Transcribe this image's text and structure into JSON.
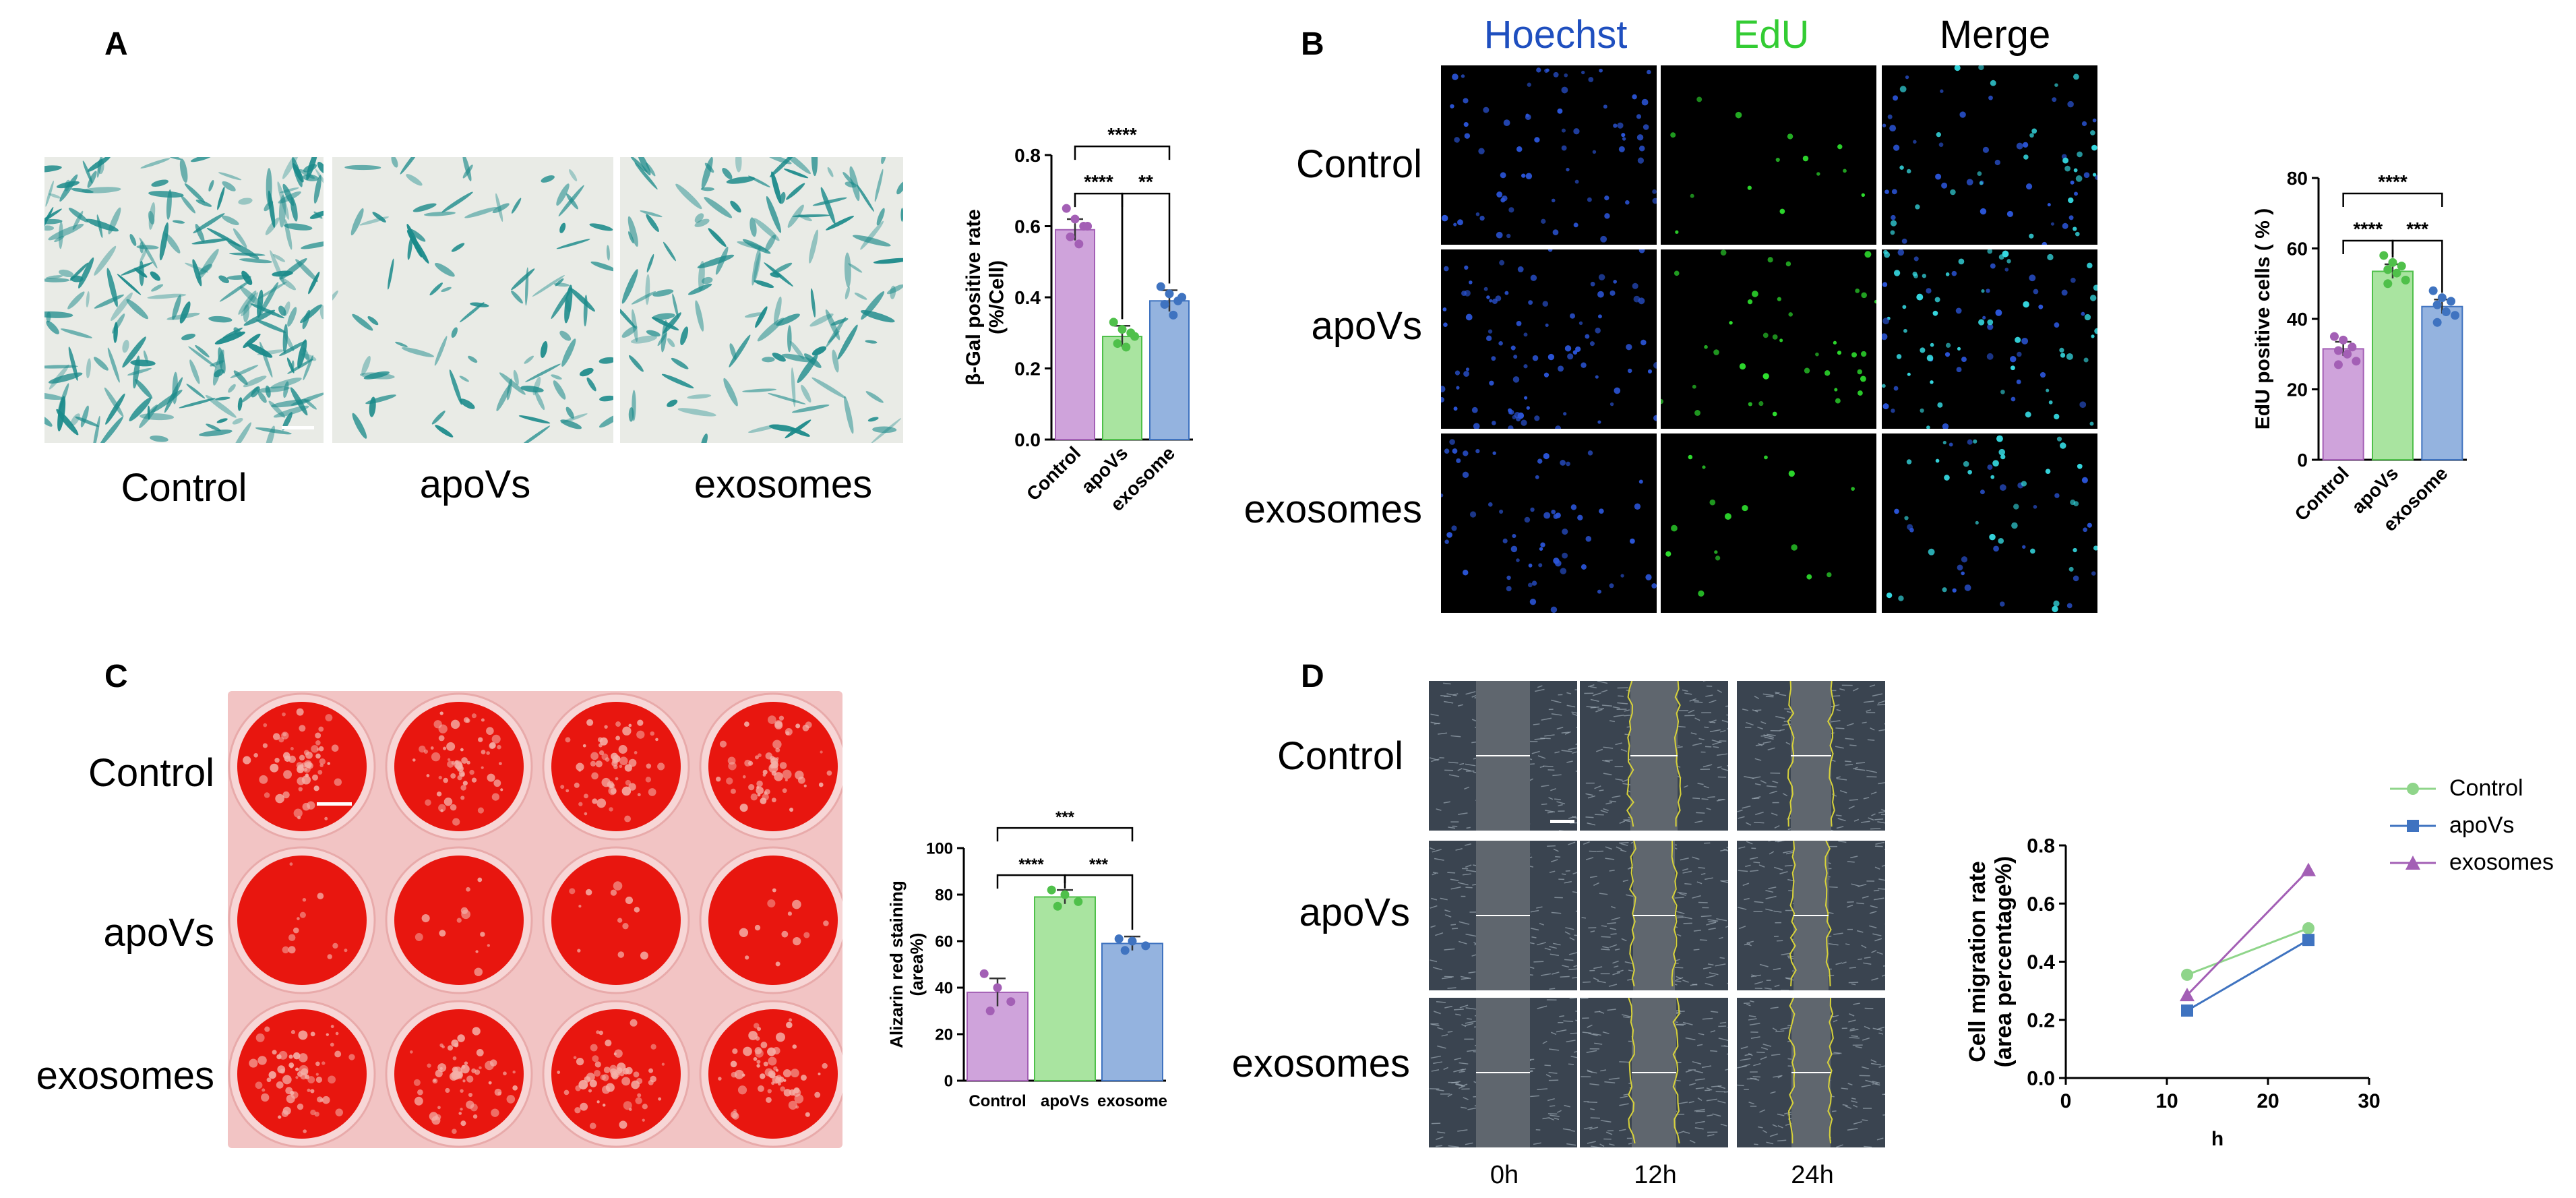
{
  "panels": {
    "A": {
      "letter": "A",
      "images": [
        {
          "label": "Control",
          "icon": "beta-gal-stain-micrograph",
          "density": 0.9
        },
        {
          "label": "apoVs",
          "icon": "beta-gal-stain-micrograph",
          "density": 0.35
        },
        {
          "label": "exosomes",
          "icon": "beta-gal-stain-micrograph",
          "density": 0.55
        }
      ]
    },
    "B": {
      "letter": "B",
      "columns": [
        "Hoechst",
        "EdU",
        "Merge"
      ],
      "column_colors": [
        "#1f4fbf",
        "#33cc33",
        "#000000"
      ],
      "rows": [
        "Control",
        "apoVs",
        "exosomes"
      ]
    },
    "C": {
      "letter": "C",
      "rows": [
        "Control",
        "apoVs",
        "exosomes"
      ],
      "well_color": "#e8160f"
    },
    "D": {
      "letter": "D",
      "rows": [
        "Control",
        "apoVs",
        "exosomes"
      ],
      "columns": [
        "0h",
        "12h",
        "24h"
      ]
    }
  },
  "chart_data": [
    {
      "id": "A-bar",
      "type": "bar",
      "categories": [
        "Control",
        "apoVs",
        "exosome"
      ],
      "values": [
        0.59,
        0.29,
        0.39
      ],
      "errors": [
        0.03,
        0.03,
        0.03
      ],
      "points": [
        [
          0.65,
          0.62,
          0.6,
          0.57,
          0.55,
          0.6
        ],
        [
          0.33,
          0.31,
          0.3,
          0.27,
          0.26,
          0.29
        ],
        [
          0.43,
          0.41,
          0.39,
          0.38,
          0.35,
          0.4
        ]
      ],
      "colors": [
        "#cfa3db",
        "#a9e4a0",
        "#94b3df"
      ],
      "point_colors": [
        "#a35fb5",
        "#4fc04a",
        "#3f73c0"
      ],
      "ylabel": "β-Gal positive rate\n(%/Cell)",
      "ylim": [
        0,
        0.8
      ],
      "yticks": [
        "0.0",
        "0.2",
        "0.4",
        "0.6",
        "0.8"
      ],
      "ytick_values": [
        0,
        0.2,
        0.4,
        0.6,
        0.8
      ],
      "significance": [
        {
          "from": 0,
          "to": 2,
          "label": "****"
        },
        {
          "from": 0,
          "to": 1,
          "label": "****"
        },
        {
          "from": 1,
          "to": 2,
          "label": "**"
        }
      ]
    },
    {
      "id": "B-bar",
      "type": "bar",
      "categories": [
        "Control",
        "apoVs",
        "exosome"
      ],
      "values": [
        31.5,
        53.5,
        43.5
      ],
      "errors": [
        2,
        2,
        2
      ],
      "points": [
        [
          35,
          34,
          32,
          31,
          30,
          28,
          27
        ],
        [
          58,
          56,
          55,
          54,
          53,
          51,
          50
        ],
        [
          48,
          46,
          45,
          44,
          42,
          41,
          39
        ]
      ],
      "colors": [
        "#cfa3db",
        "#a9e4a0",
        "#94b3df"
      ],
      "point_colors": [
        "#a35fb5",
        "#4fc04a",
        "#3f73c0"
      ],
      "ylabel": "EdU positive cells ( % )",
      "ylim": [
        0,
        80
      ],
      "yticks": [
        "0",
        "20",
        "40",
        "60",
        "80"
      ],
      "ytick_values": [
        0,
        20,
        40,
        60,
        80
      ],
      "significance": [
        {
          "from": 0,
          "to": 2,
          "label": "****"
        },
        {
          "from": 0,
          "to": 1,
          "label": "****"
        },
        {
          "from": 1,
          "to": 2,
          "label": "***"
        }
      ]
    },
    {
      "id": "C-bar",
      "type": "bar",
      "categories": [
        "Control",
        "apoVs",
        "exosome"
      ],
      "values": [
        38,
        79,
        59
      ],
      "errors": [
        6,
        3,
        3
      ],
      "points": [
        [
          46,
          40,
          34,
          30
        ],
        [
          82,
          80,
          77,
          75
        ],
        [
          61,
          60,
          58,
          56
        ]
      ],
      "colors": [
        "#cfa3db",
        "#a9e4a0",
        "#94b3df"
      ],
      "point_colors": [
        "#a35fb5",
        "#4fc04a",
        "#3f73c0"
      ],
      "ylabel": "Alizarin red staining\n(area%)",
      "ylim": [
        0,
        100
      ],
      "yticks": [
        "0",
        "20",
        "40",
        "60",
        "80",
        "100"
      ],
      "ytick_values": [
        0,
        20,
        40,
        60,
        80,
        100
      ],
      "significance": [
        {
          "from": 0,
          "to": 2,
          "label": "***"
        },
        {
          "from": 0,
          "to": 1,
          "label": "****"
        },
        {
          "from": 1,
          "to": 2,
          "label": "***"
        }
      ]
    },
    {
      "id": "D-line",
      "type": "line",
      "x": [
        12,
        24
      ],
      "series": [
        {
          "name": "Control",
          "values": [
            0.355,
            0.515
          ],
          "color": "#8fd58a",
          "marker": "circle"
        },
        {
          "name": "apoVs",
          "values": [
            0.232,
            0.475
          ],
          "color": "#3f73c0",
          "marker": "square"
        },
        {
          "name": "exosomes",
          "values": [
            0.285,
            0.715
          ],
          "color": "#a35fb5",
          "marker": "triangle"
        }
      ],
      "xlabel": "h",
      "ylabel": "Cell migration rate\n(area percentage%)",
      "xlim": [
        0,
        30
      ],
      "ylim": [
        0,
        0.8
      ],
      "xticks": [
        "0",
        "10",
        "20",
        "30"
      ],
      "xtick_values": [
        0,
        10,
        20,
        30
      ],
      "yticks": [
        "0.0",
        "0.2",
        "0.4",
        "0.6",
        "0.8"
      ],
      "ytick_values": [
        0,
        0.2,
        0.4,
        0.6,
        0.8
      ],
      "legend": "right"
    }
  ]
}
